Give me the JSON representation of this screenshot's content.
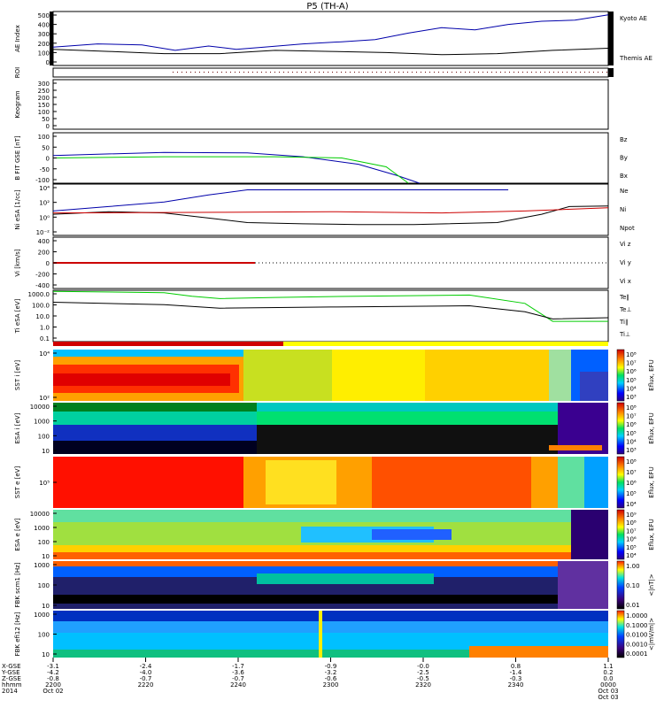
{
  "title": "P5 (TH-A)",
  "chart_data": {
    "type": "line",
    "title": "P5 (TH-A)",
    "panels": [
      {
        "id": "ae",
        "ylabel": "AE Index",
        "ylim": [
          0,
          500
        ],
        "ticks": [
          "500",
          "400",
          "300",
          "200",
          "100",
          "0"
        ],
        "legend": [
          "Kyoto AE",
          "Themis AE"
        ],
        "legend_colors": [
          "#0000aa",
          "#000000"
        ]
      },
      {
        "id": "roi",
        "ylabel": "ROI",
        "ticks": [],
        "legend": []
      },
      {
        "id": "keogram",
        "ylabel": "Keogram",
        "ylim": [
          0,
          300
        ],
        "ticks": [
          "300",
          "250",
          "200",
          "150",
          "100",
          "50",
          "0"
        ],
        "legend": []
      },
      {
        "id": "bfit",
        "ylabel": "B FIT GSE [nT]",
        "ylim": [
          -100,
          100
        ],
        "ticks": [
          "100",
          "50",
          "0",
          "-50",
          "-100"
        ],
        "legend": [
          "Bz",
          "By",
          "Bx"
        ],
        "legend_colors": [
          "#cc0000",
          "#00aa00",
          "#0000aa"
        ]
      },
      {
        "id": "ni",
        "ylabel": "Ni eSA [1/cc]",
        "ticks": [
          "10⁴",
          "10²",
          "10⁰",
          "10⁻²"
        ],
        "legend": [
          "Ne",
          "Ni",
          "Npot"
        ],
        "legend_colors": [
          "#cc0000",
          "#000000",
          "#0000aa"
        ]
      },
      {
        "id": "vi",
        "ylabel": "Vi [km/s]",
        "ylim": [
          -400,
          400
        ],
        "ticks": [
          "400",
          "200",
          "0",
          "-200",
          "-400"
        ],
        "legend": [
          "Vi z",
          "Vi y",
          "Vi x"
        ],
        "legend_colors": [
          "#cc0000",
          "#00aa00",
          "#0000aa"
        ]
      },
      {
        "id": "ti",
        "ylabel": "Ti eSA [eV]",
        "ticks": [
          "1000.0",
          "100.0",
          "10.0",
          "1.0",
          "0.1"
        ],
        "legend": [
          "Te∥",
          "Te⊥",
          "Ti∥",
          "Ti⊥"
        ],
        "legend_colors": [
          "#000000",
          "#cc0000",
          "#00aa00",
          "#0000aa"
        ]
      },
      {
        "id": "sst_i",
        "ylabel": "SST i [eV]",
        "ticks": [
          "10⁴",
          "10²"
        ],
        "cbar": "Eflux, EFU",
        "cbar_ticks": [
          "10⁸",
          "10⁷",
          "10⁶",
          "10⁵",
          "10⁴",
          "10³"
        ]
      },
      {
        "id": "esa_i",
        "ylabel": "ESA i [eV]",
        "ticks": [
          "10000",
          "1000",
          "100",
          "10"
        ],
        "cbar": "Eflux, EFU",
        "cbar_ticks": [
          "10⁸",
          "10⁷",
          "10⁶",
          "10⁵",
          "10⁴",
          "10³"
        ]
      },
      {
        "id": "sst_e",
        "ylabel": "SST e [eV]",
        "ticks": [
          "10⁵"
        ],
        "cbar": "Eflux, EFU",
        "cbar_ticks": [
          "10⁸",
          "10⁷",
          "10⁶",
          "10⁵",
          "10⁴"
        ]
      },
      {
        "id": "esa_e",
        "ylabel": "ESA e [eV]",
        "ticks": [
          "10000",
          "1000",
          "100",
          "10"
        ],
        "cbar": "Eflux, EFU",
        "cbar_ticks": [
          "10⁹",
          "10⁸",
          "10⁷",
          "10⁶",
          "10⁵",
          "10⁴"
        ]
      },
      {
        "id": "fbk_b",
        "ylabel": "FBK scm1 [Hz]",
        "ticks": [
          "1000",
          "100",
          "10"
        ],
        "cbar": "<|nT|>",
        "cbar_ticks": [
          "1.00",
          "0.10",
          "0.01"
        ]
      },
      {
        "id": "fbk_e",
        "ylabel": "FBK efi12 [Hz]",
        "ticks": [
          "1000",
          "100",
          "10"
        ],
        "cbar": "<|mV/m|>",
        "cbar_ticks": [
          "1.0000",
          "0.1000",
          "0.0100",
          "0.0010",
          "0.0001"
        ]
      }
    ],
    "time_axis": {
      "row_labels": [
        "X-GSE",
        "Y-GSE",
        "Z-GSE",
        "hhmm",
        "2014"
      ],
      "ticks": [
        {
          "x": "-3.1",
          "y": "-4.2",
          "z": "-0.8",
          "t": "2200",
          "d": "Oct 02"
        },
        {
          "x": "-2.4",
          "y": "-4.0",
          "z": "-0.7",
          "t": "2220",
          "d": ""
        },
        {
          "x": "-1.7",
          "y": "-3.6",
          "z": "-0.7",
          "t": "2240",
          "d": ""
        },
        {
          "x": "-0.9",
          "y": "-3.2",
          "z": "-0.6",
          "t": "2300",
          "d": ""
        },
        {
          "x": "-0.0",
          "y": "-2.5",
          "z": "-0.5",
          "t": "2320",
          "d": ""
        },
        {
          "x": "0.8",
          "y": "-1.4",
          "z": "-0.3",
          "t": "2340",
          "d": ""
        },
        {
          "x": "1.1",
          "y": "0.2",
          "z": "0.0",
          "t": "0000",
          "d": "Oct 03"
        }
      ]
    },
    "series": [
      {
        "name": "Kyoto AE",
        "panel": "ae",
        "t": [
          0,
          0.08,
          0.16,
          0.22,
          0.28,
          0.33,
          0.38,
          0.45,
          0.52,
          0.58,
          0.64,
          0.7,
          0.76,
          0.82,
          0.88,
          0.94,
          1.0
        ],
        "values": [
          170,
          200,
          190,
          140,
          180,
          150,
          170,
          200,
          220,
          240,
          300,
          350,
          330,
          380,
          410,
          420,
          470
        ]
      },
      {
        "name": "Themis AE",
        "panel": "ae",
        "t": [
          0,
          0.1,
          0.2,
          0.3,
          0.4,
          0.5,
          0.6,
          0.7,
          0.8,
          0.9,
          1.0
        ],
        "values": [
          150,
          130,
          110,
          110,
          140,
          130,
          120,
          100,
          110,
          140,
          160
        ]
      },
      {
        "name": "Bx",
        "panel": "bfit",
        "t": [
          0,
          0.2,
          0.35,
          0.45,
          0.55,
          0.62,
          0.66
        ],
        "values": [
          10,
          22,
          20,
          5,
          -25,
          -70,
          -100
        ]
      },
      {
        "name": "By",
        "panel": "bfit",
        "t": [
          0,
          0.2,
          0.4,
          0.52,
          0.6,
          0.64
        ],
        "values": [
          0,
          5,
          5,
          0,
          -35,
          -100
        ]
      },
      {
        "name": "Ni",
        "panel": "ni",
        "t": [
          0,
          0.1,
          0.2,
          0.28,
          0.35,
          0.45,
          0.55,
          0.65,
          0.8,
          0.88,
          0.93,
          1.0
        ],
        "values": [
          0.3,
          0.7,
          0.5,
          -0.3,
          -1.0,
          -1.2,
          -1.3,
          -1.3,
          -1.0,
          0.3,
          1.5,
          1.6
        ]
      },
      {
        "name": "Ne",
        "panel": "ni",
        "t": [
          0,
          0.3,
          0.5,
          0.7,
          0.85,
          1.0
        ],
        "values": [
          0.5,
          0.6,
          0.7,
          0.5,
          0.8,
          1.3
        ]
      },
      {
        "name": "Npot",
        "panel": "ni",
        "t": [
          0,
          0.1,
          0.2,
          0.28,
          0.35,
          0.55,
          0.82
        ],
        "values": [
          0.8,
          1.5,
          2.2,
          3.3,
          4.1,
          4.1,
          4.1
        ]
      },
      {
        "name": "Ti∥",
        "panel": "ti",
        "t": [
          0,
          0.2,
          0.25,
          0.3,
          0.4,
          0.55,
          0.75,
          0.85,
          0.9,
          1.0
        ],
        "values": [
          3.2,
          3.1,
          2.8,
          2.6,
          2.7,
          2.8,
          2.9,
          2.2,
          0.7,
          0.7
        ]
      },
      {
        "name": "Te∥",
        "panel": "ti",
        "t": [
          0,
          0.2,
          0.3,
          0.5,
          0.75,
          0.85,
          0.9,
          1.0
        ],
        "values": [
          2.3,
          2.1,
          1.8,
          1.9,
          2.0,
          1.5,
          0.9,
          1.0
        ]
      }
    ]
  }
}
